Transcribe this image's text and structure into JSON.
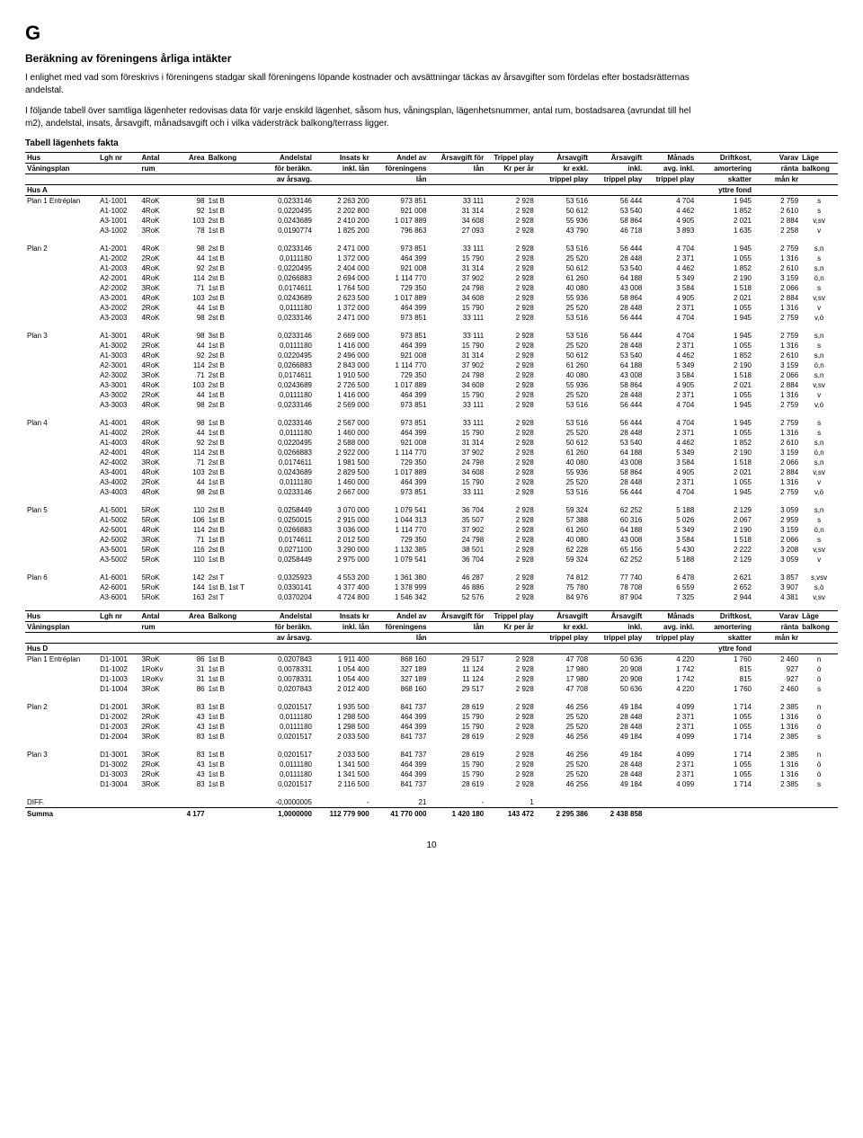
{
  "section_letter": "G",
  "title": "Beräkning av föreningens årliga intäkter",
  "intro_p1": "I enlighet med vad som föreskrivs i föreningens stadgar skall föreningens löpande kostnader och avsättningar täckas av årsavgifter som fördelas efter bostadsrätternas andelstal.",
  "intro_p2": "I följande tabell över samtliga lägenheter redovisas data för varje enskild lägenhet, såsom hus, våningsplan, lägenhetsnummer, antal rum, bostadsarea (avrundat till hel m2), andelstal, insats, årsavgift, månadsavgift och i vilka vädersträck balkong/terrass ligger.",
  "table_caption": "Tabell lägenhets fakta",
  "header_rows_A": [
    [
      "Hus",
      "Lgh nr",
      "Antal",
      "Area",
      "Balkong",
      "Andelstal",
      "Insats kr",
      "Andel av",
      "Årsavgift för",
      "Trippel play",
      "Årsavgift",
      "Årsavgift",
      "Månads",
      "Driftkost,",
      "Varav",
      "Läge"
    ],
    [
      "Våningsplan",
      "",
      "rum",
      "",
      "",
      "för beräkn.",
      "inkl. lån",
      "föreningens",
      "lån",
      "Kr per år",
      "kr  exkl.",
      "inkl.",
      "avg. inkl.",
      "amortering",
      "ränta",
      "balkong"
    ],
    [
      "",
      "",
      "",
      "",
      "",
      "av årsavg.",
      "",
      "lån",
      "",
      "",
      "trippel play",
      "trippel play",
      "trippel play",
      "skatter",
      "mån kr",
      ""
    ],
    [
      "Hus A",
      "",
      "",
      "",
      "",
      "",
      "",
      "",
      "",
      "",
      "",
      "",
      "",
      "yttre fond",
      "",
      ""
    ]
  ],
  "header_rows_D": [
    [
      "Hus",
      "Lgh nr",
      "Antal",
      "Area",
      "Balkong",
      "Andelstal",
      "Insats kr",
      "Andel av",
      "Årsavgift för",
      "Trippel play",
      "Årsavgift",
      "Årsavgift",
      "Månads",
      "Driftkost,",
      "Varav",
      "Läge"
    ],
    [
      "Våningsplan",
      "",
      "rum",
      "",
      "",
      "för beräkn.",
      "inkl. lån",
      "föreningens",
      "lån",
      "Kr per år",
      "kr  exkl.",
      "inkl.",
      "avg. inkl.",
      "amortering",
      "ränta",
      "balkong"
    ],
    [
      "",
      "",
      "",
      "",
      "",
      "av årsavg.",
      "",
      "lån",
      "",
      "",
      "trippel play",
      "trippel play",
      "trippel play",
      "skatter",
      "mån kr",
      ""
    ],
    [
      "Hus D",
      "",
      "",
      "",
      "",
      "",
      "",
      "",
      "",
      "",
      "",
      "",
      "",
      "yttre fond",
      "",
      ""
    ]
  ],
  "groups_A": [
    {
      "label": "Plan 1 Entréplan",
      "rows": [
        [
          "A1-1001",
          "4RoK",
          "98",
          "1st B",
          "0,0233146",
          "2 263 200",
          "973 851",
          "33 111",
          "2 928",
          "53 516",
          "56 444",
          "4 704",
          "1 945",
          "2 759",
          "s"
        ],
        [
          "A1-1002",
          "4RoK",
          "92",
          "1st B",
          "0,0220495",
          "2 202 800",
          "921 008",
          "31 314",
          "2 928",
          "50 612",
          "53 540",
          "4 462",
          "1 852",
          "2 610",
          "s"
        ],
        [
          "A3-1001",
          "4RoK",
          "103",
          "2st B",
          "0,0243689",
          "2 410 200",
          "1 017 889",
          "34 608",
          "2 928",
          "55 936",
          "58 864",
          "4 905",
          "2 021",
          "2 884",
          "v,sv"
        ],
        [
          "A3-1002",
          "3RoK",
          "78",
          "1st B",
          "0,0190774",
          "1 825 200",
          "796 863",
          "27 093",
          "2 928",
          "43 790",
          "46 718",
          "3 893",
          "1 635",
          "2 258",
          "v"
        ]
      ]
    },
    {
      "label": "Plan 2",
      "rows": [
        [
          "A1-2001",
          "4RoK",
          "98",
          "2st B",
          "0,0233146",
          "2 471 000",
          "973 851",
          "33 111",
          "2 928",
          "53 516",
          "56 444",
          "4 704",
          "1 945",
          "2 759",
          "s,n"
        ],
        [
          "A1-2002",
          "2RoK",
          "44",
          "1st B",
          "0,0111180",
          "1 372 000",
          "464 399",
          "15 790",
          "2 928",
          "25 520",
          "28 448",
          "2 371",
          "1 055",
          "1 316",
          "s"
        ],
        [
          "A1-2003",
          "4RoK",
          "92",
          "2st B",
          "0,0220495",
          "2 404 000",
          "921 008",
          "31 314",
          "2 928",
          "50 612",
          "53 540",
          "4 462",
          "1 852",
          "2 610",
          "s,n"
        ],
        [
          "A2-2001",
          "4RoK",
          "114",
          "2st B",
          "0,0266883",
          "2 694 000",
          "1 114 770",
          "37 902",
          "2 928",
          "61 260",
          "64 188",
          "5 349",
          "2 190",
          "3 159",
          "ö,n"
        ],
        [
          "A2-2002",
          "3RoK",
          "71",
          "1st B",
          "0,0174611",
          "1 764 500",
          "729 350",
          "24 798",
          "2 928",
          "40 080",
          "43 008",
          "3 584",
          "1 518",
          "2 066",
          "s"
        ],
        [
          "A3-2001",
          "4RoK",
          "103",
          "2st B",
          "0,0243689",
          "2 623 500",
          "1 017 889",
          "34 608",
          "2 928",
          "55 936",
          "58 864",
          "4 905",
          "2 021",
          "2 884",
          "v,sv"
        ],
        [
          "A3-2002",
          "2RoK",
          "44",
          "1st B",
          "0,0111180",
          "1 372 000",
          "464 399",
          "15 790",
          "2 928",
          "25 520",
          "28 448",
          "2 371",
          "1 055",
          "1 316",
          "v"
        ],
        [
          "A3-2003",
          "4RoK",
          "98",
          "2st B",
          "0,0233146",
          "2 471 000",
          "973 851",
          "33 111",
          "2 928",
          "53 516",
          "56 444",
          "4 704",
          "1 945",
          "2 759",
          "v,ö"
        ]
      ]
    },
    {
      "label": "Plan 3",
      "rows": [
        [
          "A1-3001",
          "4RoK",
          "98",
          "3st B",
          "0,0233146",
          "2 669 000",
          "973 851",
          "33 111",
          "2 928",
          "53 516",
          "56 444",
          "4 704",
          "1 945",
          "2 759",
          "s,n"
        ],
        [
          "A1-3002",
          "2RoK",
          "44",
          "1st B",
          "0,0111180",
          "1 416 000",
          "464 399",
          "15 790",
          "2 928",
          "25 520",
          "28 448",
          "2 371",
          "1 055",
          "1 316",
          "s"
        ],
        [
          "A1-3003",
          "4RoK",
          "92",
          "2st B",
          "0,0220495",
          "2 496 000",
          "921 008",
          "31 314",
          "2 928",
          "50 612",
          "53 540",
          "4 462",
          "1 852",
          "2 610",
          "s,n"
        ],
        [
          "A2-3001",
          "4RoK",
          "114",
          "2st B",
          "0,0266883",
          "2 843 000",
          "1 114 770",
          "37 902",
          "2 928",
          "61 260",
          "64 188",
          "5 349",
          "2 190",
          "3 159",
          "ö,n"
        ],
        [
          "A2-3002",
          "3RoK",
          "71",
          "2st B",
          "0,0174611",
          "1 910 500",
          "729 350",
          "24 798",
          "2 928",
          "40 080",
          "43 008",
          "3 584",
          "1 518",
          "2 066",
          "s,n"
        ],
        [
          "A3-3001",
          "4RoK",
          "103",
          "2st B",
          "0,0243689",
          "2 726 500",
          "1 017 889",
          "34 608",
          "2 928",
          "55 936",
          "58 864",
          "4 905",
          "2 021",
          "2 884",
          "v,sv"
        ],
        [
          "A3-3002",
          "2RoK",
          "44",
          "1st B",
          "0,0111180",
          "1 416 000",
          "464 399",
          "15 790",
          "2 928",
          "25 520",
          "28 448",
          "2 371",
          "1 055",
          "1 316",
          "v"
        ],
        [
          "A3-3003",
          "4RoK",
          "98",
          "2st B",
          "0,0233146",
          "2 569 000",
          "973 851",
          "33 111",
          "2 928",
          "53 516",
          "56 444",
          "4 704",
          "1 945",
          "2 759",
          "v,ö"
        ]
      ]
    },
    {
      "label": "Plan 4",
      "rows": [
        [
          "A1-4001",
          "4RoK",
          "98",
          "1st B",
          "0,0233146",
          "2 567 000",
          "973 851",
          "33 111",
          "2 928",
          "53 516",
          "56 444",
          "4 704",
          "1 945",
          "2 759",
          "s"
        ],
        [
          "A1-4002",
          "2RoK",
          "44",
          "1st B",
          "0,0111180",
          "1 460 000",
          "464 399",
          "15 790",
          "2 928",
          "25 520",
          "28 448",
          "2 371",
          "1 055",
          "1 316",
          "s"
        ],
        [
          "A1-4003",
          "4RoK",
          "92",
          "2st B",
          "0,0220495",
          "2 588 000",
          "921 008",
          "31 314",
          "2 928",
          "50 612",
          "53 540",
          "4 462",
          "1 852",
          "2 610",
          "s,n"
        ],
        [
          "A2-4001",
          "4RoK",
          "114",
          "2st B",
          "0,0266883",
          "2 922 000",
          "1 114 770",
          "37 902",
          "2 928",
          "61 260",
          "64 188",
          "5 349",
          "2 190",
          "3 159",
          "ö,n"
        ],
        [
          "A2-4002",
          "3RoK",
          "71",
          "2st B",
          "0,0174611",
          "1 981 500",
          "729 350",
          "24 798",
          "2 928",
          "40 080",
          "43 008",
          "3 584",
          "1 518",
          "2 066",
          "s,n"
        ],
        [
          "A3-4001",
          "4RoK",
          "103",
          "2st B",
          "0,0243689",
          "2 829 500",
          "1 017 889",
          "34 608",
          "2 928",
          "55 936",
          "58 864",
          "4 905",
          "2 021",
          "2 884",
          "v,sv"
        ],
        [
          "A3-4002",
          "2RoK",
          "44",
          "1st B",
          "0,0111180",
          "1 460 000",
          "464 399",
          "15 790",
          "2 928",
          "25 520",
          "28 448",
          "2 371",
          "1 055",
          "1 316",
          "v"
        ],
        [
          "A3-4003",
          "4RoK",
          "98",
          "2st B",
          "0,0233146",
          "2 667 000",
          "973 851",
          "33 111",
          "2 928",
          "53 516",
          "56 444",
          "4 704",
          "1 945",
          "2 759",
          "v,ö"
        ]
      ]
    },
    {
      "label": "Plan 5",
      "rows": [
        [
          "A1-5001",
          "5RoK",
          "110",
          "2st B",
          "0,0258449",
          "3 070 000",
          "1 079 541",
          "36 704",
          "2 928",
          "59 324",
          "62 252",
          "5 188",
          "2 129",
          "3 059",
          "s,n"
        ],
        [
          "A1-5002",
          "5RoK",
          "106",
          "1st B",
          "0,0250015",
          "2 915 000",
          "1 044 313",
          "35 507",
          "2 928",
          "57 388",
          "60 316",
          "5 026",
          "2 067",
          "2 959",
          "s"
        ],
        [
          "A2-5001",
          "4RoK",
          "114",
          "2st B",
          "0,0266883",
          "3 036 000",
          "1 114 770",
          "37 902",
          "2 928",
          "61 260",
          "64 188",
          "5 349",
          "2 190",
          "3 159",
          "ö,n"
        ],
        [
          "A2-5002",
          "3RoK",
          "71",
          "1st B",
          "0,0174611",
          "2 012 500",
          "729 350",
          "24 798",
          "2 928",
          "40 080",
          "43 008",
          "3 584",
          "1 518",
          "2 066",
          "s"
        ],
        [
          "A3-5001",
          "5RoK",
          "116",
          "2st B",
          "0,0271100",
          "3 290 000",
          "1 132 385",
          "38 501",
          "2 928",
          "62 228",
          "65 156",
          "5 430",
          "2 222",
          "3 208",
          "v,sv"
        ],
        [
          "A3-5002",
          "5RoK",
          "110",
          "1st B",
          "0,0258449",
          "2 975 000",
          "1 079 541",
          "36 704",
          "2 928",
          "59 324",
          "62 252",
          "5 188",
          "2 129",
          "3 059",
          "v"
        ]
      ]
    },
    {
      "label": "Plan 6",
      "rows": [
        [
          "A1-6001",
          "5RoK",
          "142",
          "2st T",
          "0,0325923",
          "4 553 200",
          "1 361 380",
          "46 287",
          "2 928",
          "74 812",
          "77 740",
          "6 478",
          "2 621",
          "3 857",
          "s,vsv"
        ],
        [
          "A2-6001",
          "5RoK",
          "144",
          "1st B, 1st T",
          "0,0330141",
          "4 377 400",
          "1 378 999",
          "46 886",
          "2 928",
          "75 780",
          "78 708",
          "6 559",
          "2 652",
          "3 907",
          "s,ö"
        ],
        [
          "A3-6001",
          "5RoK",
          "163",
          "2st T",
          "0,0370204",
          "4 724 800",
          "1 546 342",
          "52 576",
          "2 928",
          "84 976",
          "87 904",
          "7 325",
          "2 944",
          "4 381",
          "v,sv"
        ]
      ]
    }
  ],
  "groups_D": [
    {
      "label": "Plan 1 Entréplan",
      "rows": [
        [
          "D1-1001",
          "3RoK",
          "86",
          "1st B",
          "0,0207843",
          "1 911 400",
          "868 160",
          "29 517",
          "2 928",
          "47 708",
          "50 636",
          "4 220",
          "1 760",
          "2 460",
          "n"
        ],
        [
          "D1-1002",
          "1RoKv",
          "31",
          "1st B",
          "0,0078331",
          "1 054 400",
          "327 189",
          "11 124",
          "2 928",
          "17 980",
          "20 908",
          "1 742",
          "815",
          "927",
          "ö"
        ],
        [
          "D1-1003",
          "1RoKv",
          "31",
          "1st B",
          "0,0078331",
          "1 054 400",
          "327 189",
          "11 124",
          "2 928",
          "17 980",
          "20 908",
          "1 742",
          "815",
          "927",
          "ö"
        ],
        [
          "D1-1004",
          "3RoK",
          "86",
          "1st B",
          "0,0207843",
          "2 012 400",
          "868 160",
          "29 517",
          "2 928",
          "47 708",
          "50 636",
          "4 220",
          "1 760",
          "2 460",
          "s"
        ]
      ]
    },
    {
      "label": "Plan 2",
      "rows": [
        [
          "D1-2001",
          "3RoK",
          "83",
          "1st B",
          "0,0201517",
          "1 935 500",
          "841 737",
          "28 619",
          "2 928",
          "46 256",
          "49 184",
          "4 099",
          "1 714",
          "2 385",
          "n"
        ],
        [
          "D1-2002",
          "2RoK",
          "43",
          "1st B",
          "0,0111180",
          "1 298 500",
          "464 399",
          "15 790",
          "2 928",
          "25 520",
          "28 448",
          "2 371",
          "1 055",
          "1 316",
          "ö"
        ],
        [
          "D1-2003",
          "2RoK",
          "43",
          "1st B",
          "0,0111180",
          "1 298 500",
          "464 399",
          "15 790",
          "2 928",
          "25 520",
          "28 448",
          "2 371",
          "1 055",
          "1 316",
          "ö"
        ],
        [
          "D1-2004",
          "3RoK",
          "83",
          "1st B",
          "0,0201517",
          "2 033 500",
          "841 737",
          "28 619",
          "2 928",
          "46 256",
          "49 184",
          "4 099",
          "1 714",
          "2 385",
          "s"
        ]
      ]
    },
    {
      "label": "Plan 3",
      "rows": [
        [
          "D1-3001",
          "3RoK",
          "83",
          "1st B",
          "0,0201517",
          "2 033 500",
          "841 737",
          "28 619",
          "2 928",
          "46 256",
          "49 184",
          "4 099",
          "1 714",
          "2 385",
          "n"
        ],
        [
          "D1-3002",
          "2RoK",
          "43",
          "1st B",
          "0,0111180",
          "1 341 500",
          "464 399",
          "15 790",
          "2 928",
          "25 520",
          "28 448",
          "2 371",
          "1 055",
          "1 316",
          "ö"
        ],
        [
          "D1-3003",
          "2RoK",
          "43",
          "1st B",
          "0,0111180",
          "1 341 500",
          "464 399",
          "15 790",
          "2 928",
          "25 520",
          "28 448",
          "2 371",
          "1 055",
          "1 316",
          "ö"
        ],
        [
          "D1-3004",
          "3RoK",
          "83",
          "1st B",
          "0,0201517",
          "2 116 500",
          "841 737",
          "28 619",
          "2 928",
          "46 256",
          "49 184",
          "4 099",
          "1 714",
          "2 385",
          "s"
        ]
      ]
    }
  ],
  "diff_row": [
    "DIFF.",
    "",
    "",
    "",
    "",
    "-0,0000005",
    "-",
    "21",
    "-",
    "1",
    "",
    "",
    "",
    "",
    "",
    ""
  ],
  "summa_row": [
    "Summa",
    "",
    "",
    "4 177",
    "",
    "1,0000000",
    "112 779 900",
    "41 770 000",
    "1 420 180",
    "143 472",
    "2 295 386",
    "2 438 858",
    "",
    "",
    "",
    ""
  ],
  "page_num": "10"
}
